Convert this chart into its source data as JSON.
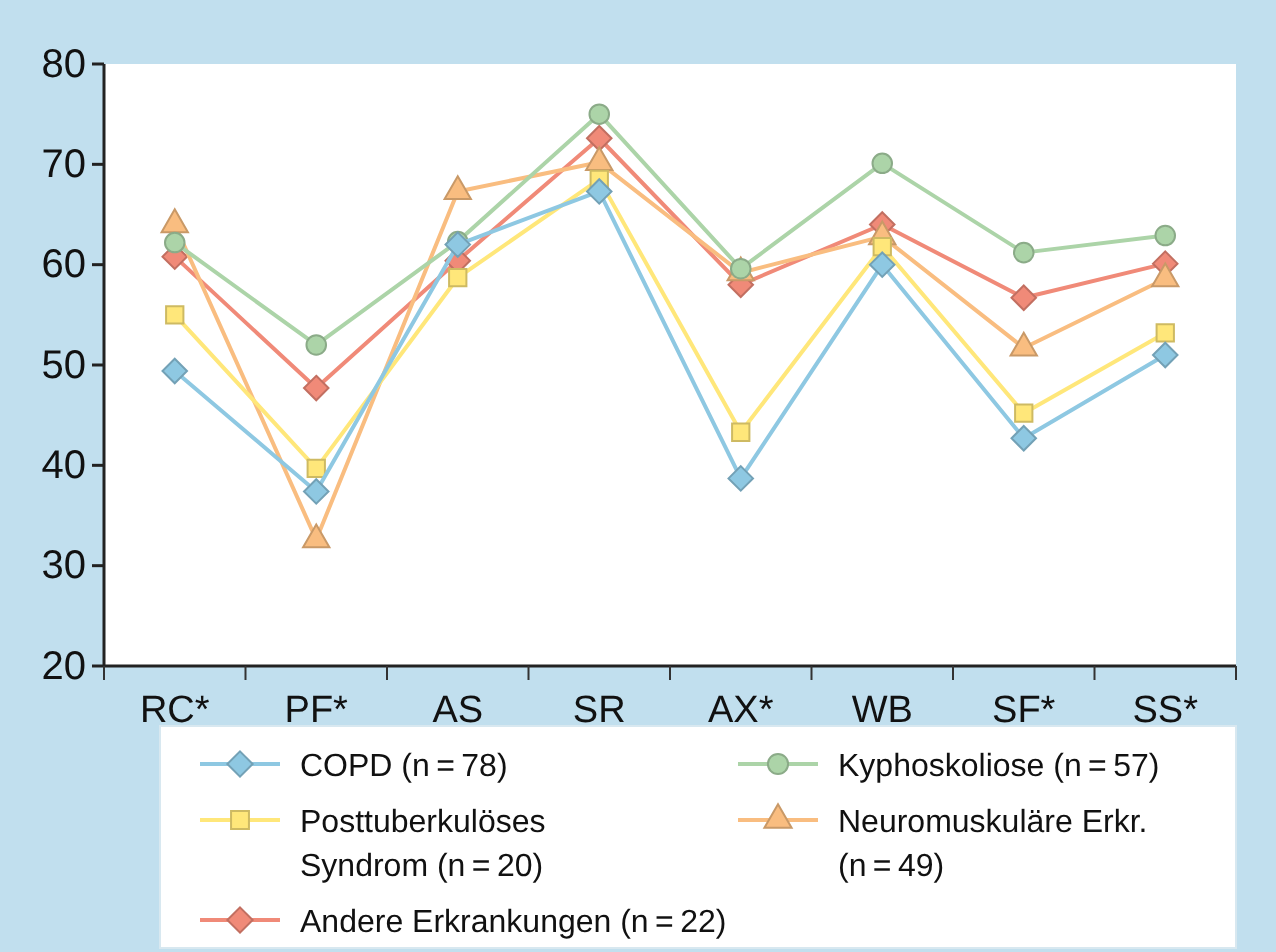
{
  "chart_data": {
    "type": "line",
    "categories": [
      "RC*",
      "PF*",
      "AS",
      "SR",
      "AX*",
      "WB",
      "SF*",
      "SS*"
    ],
    "ylim": [
      20,
      80
    ],
    "yticks": [
      20,
      30,
      40,
      50,
      60,
      70,
      80
    ],
    "grid": false,
    "legend": "bottom",
    "series": [
      {
        "name": "COPD (n = 78)",
        "color": "#8ec8e2",
        "marker": "diamond",
        "values": [
          49.4,
          37.4,
          62,
          67.3,
          38.7,
          60,
          42.7,
          51
        ]
      },
      {
        "name": "Kyphoskoliose (n = 57)",
        "color": "#acd4a8",
        "marker": "circle",
        "values": [
          62.2,
          52,
          62.3,
          75,
          59.6,
          70.1,
          61.2,
          62.9
        ]
      },
      {
        "name": "Posttuberkulöses Syndrom (n = 20)",
        "color": "#ffe77a",
        "marker": "square",
        "values": [
          55,
          39.7,
          58.7,
          68.5,
          43.3,
          61.8,
          45.2,
          53.2
        ]
      },
      {
        "name": "Neuromuskuläre Erkr. (n = 49)",
        "color": "#f9bd80",
        "marker": "triangle",
        "values": [
          64,
          32.6,
          67.3,
          70.2,
          59.2,
          62.8,
          51.7,
          58.6
        ]
      },
      {
        "name": "Andere Erkrankungen (n = 22)",
        "color": "#f08a78",
        "marker": "diamond",
        "values": [
          60.8,
          47.7,
          60.4,
          72.6,
          58,
          64,
          56.7,
          60.1
        ]
      }
    ]
  }
}
